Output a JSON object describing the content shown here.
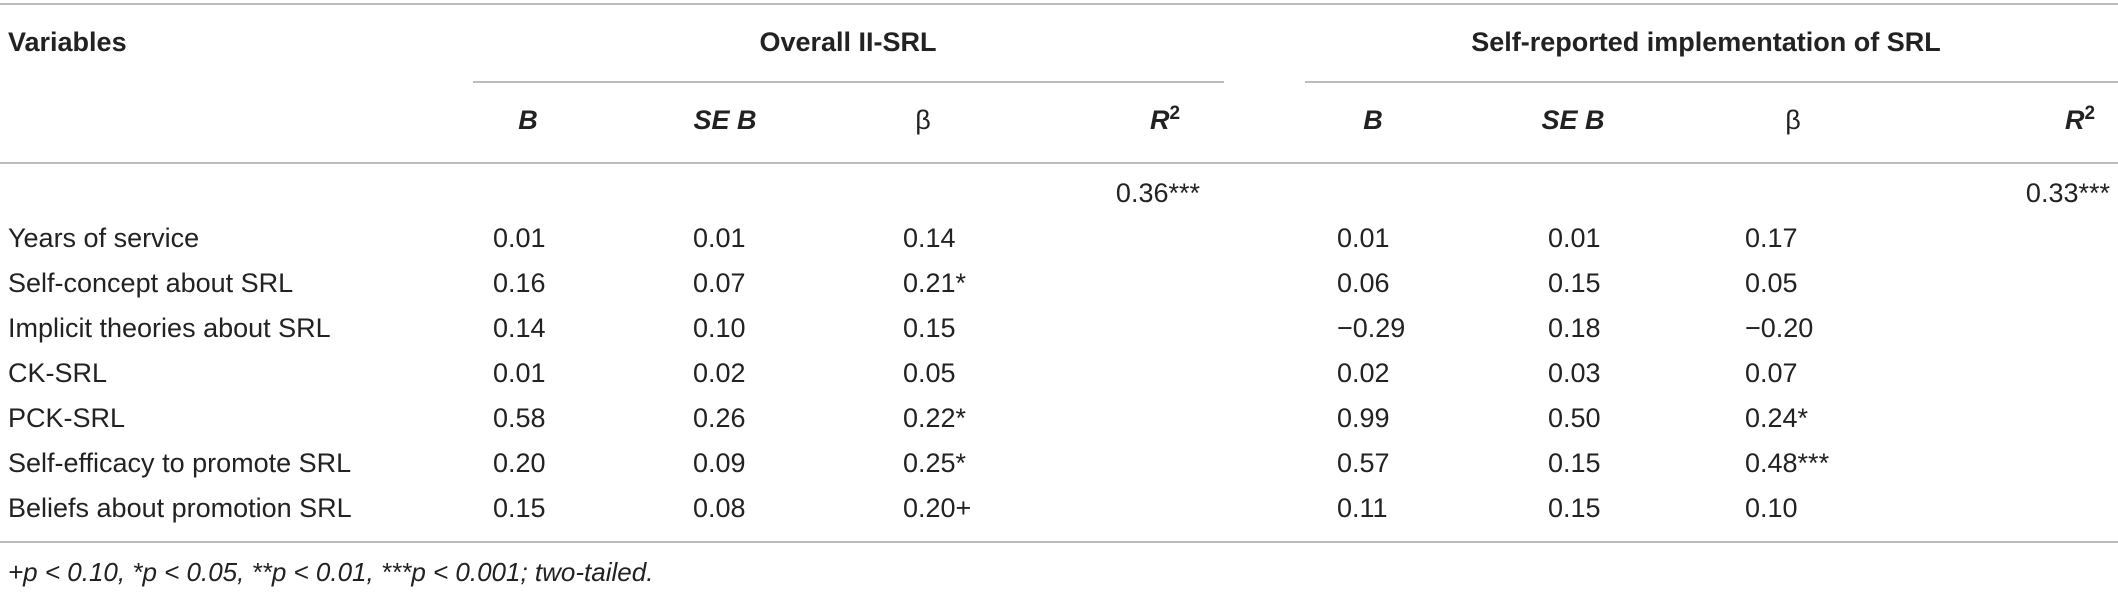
{
  "header": {
    "variables": "Variables",
    "group1": "Overall II-SRL",
    "group2": "Self-reported implementation of SRL",
    "cols": [
      {
        "main": "B",
        "sup": ""
      },
      {
        "main": "SE B",
        "sup": ""
      },
      {
        "main": "β",
        "sup": ""
      },
      {
        "main": "R",
        "sup": "2"
      }
    ]
  },
  "r2": {
    "group1": "0.36***",
    "group2": "0.33***"
  },
  "rows": [
    {
      "label": "Years of service",
      "g1": [
        "0.01",
        "0.01",
        "0.14"
      ],
      "g2": [
        "0.01",
        "0.01",
        "0.17"
      ]
    },
    {
      "label": "Self-concept about SRL",
      "g1": [
        "0.16",
        "0.07",
        "0.21*"
      ],
      "g2": [
        "0.06",
        "0.15",
        "0.05"
      ]
    },
    {
      "label": "Implicit theories about SRL",
      "g1": [
        "0.14",
        "0.10",
        "0.15"
      ],
      "g2": [
        "−0.29",
        "0.18",
        "−0.20"
      ]
    },
    {
      "label": "CK-SRL",
      "g1": [
        "0.01",
        "0.02",
        "0.05"
      ],
      "g2": [
        "0.02",
        "0.03",
        "0.07"
      ]
    },
    {
      "label": "PCK-SRL",
      "g1": [
        "0.58",
        "0.26",
        "0.22*"
      ],
      "g2": [
        "0.99",
        "0.50",
        "0.24*"
      ]
    },
    {
      "label": "Self-efficacy to promote SRL",
      "g1": [
        "0.20",
        "0.09",
        "0.25*"
      ],
      "g2": [
        "0.57",
        "0.15",
        "0.48***"
      ]
    },
    {
      "label": "Beliefs about promotion SRL",
      "g1": [
        "0.15",
        "0.08",
        "0.20+"
      ],
      "g2": [
        "0.11",
        "0.15",
        "0.10"
      ]
    }
  ],
  "footnote": "+p < 0.10, *p < 0.05, **p < 0.01, ***p < 0.001; two-tailed."
}
